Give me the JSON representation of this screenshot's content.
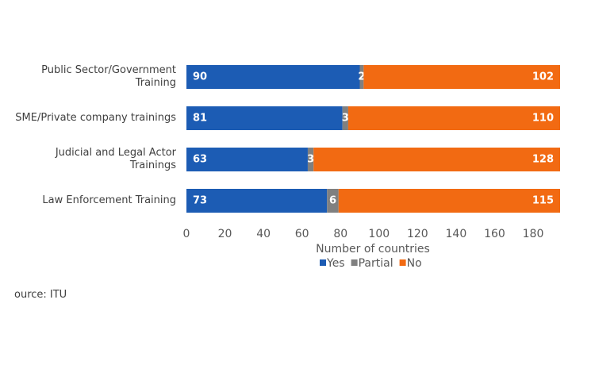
{
  "chart_data": {
    "type": "stacked-barh",
    "categories": [
      "Public Sector/Government Training",
      "SME/Private company trainings",
      "Judicial and Legal Actor Trainings",
      "Law Enforcement Training"
    ],
    "series": [
      {
        "name": "Yes",
        "color": "#1c5cb4",
        "values": [
          90,
          81,
          63,
          73
        ]
      },
      {
        "name": "Partial",
        "color": "#808080",
        "values": [
          2,
          3,
          3,
          6
        ]
      },
      {
        "name": "No",
        "color": "#f26a12",
        "values": [
          102,
          110,
          128,
          115
        ]
      }
    ],
    "xlim": [
      0,
      194
    ],
    "xticks": [
      0,
      20,
      40,
      60,
      80,
      100,
      120,
      140,
      160,
      180
    ],
    "xlabel": "Number of countries",
    "legend": "bottom",
    "source": "ource: ITU"
  }
}
